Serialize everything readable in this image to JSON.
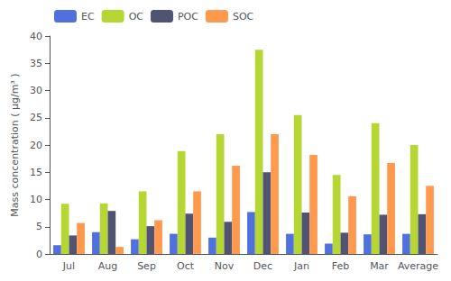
{
  "chart_data": {
    "type": "bar",
    "categories": [
      "Jul",
      "Aug",
      "Sep",
      "Oct",
      "Nov",
      "Dec",
      "Jan",
      "Feb",
      "Mar",
      "Average"
    ],
    "series": [
      {
        "name": "EC",
        "values": [
          1.6,
          4.0,
          2.7,
          3.7,
          3.0,
          7.7,
          3.7,
          1.9,
          3.6,
          3.7
        ]
      },
      {
        "name": "OC",
        "values": [
          9.2,
          9.3,
          11.5,
          18.9,
          22.0,
          37.5,
          25.5,
          14.5,
          24.0,
          20.0
        ]
      },
      {
        "name": "POC",
        "values": [
          3.4,
          7.9,
          5.1,
          7.4,
          5.9,
          15.0,
          7.6,
          3.9,
          7.2,
          7.3
        ]
      },
      {
        "name": "SOC",
        "values": [
          5.7,
          1.3,
          6.2,
          11.5,
          16.2,
          22.0,
          18.2,
          10.6,
          16.7,
          12.5
        ]
      }
    ],
    "ylabel": "Mass concentration ( μg/m³ )",
    "ylim": [
      0,
      40
    ],
    "yticks": [
      0,
      5,
      10,
      15,
      20,
      25,
      30,
      35,
      40
    ],
    "grid": false,
    "legend": "upper left"
  }
}
